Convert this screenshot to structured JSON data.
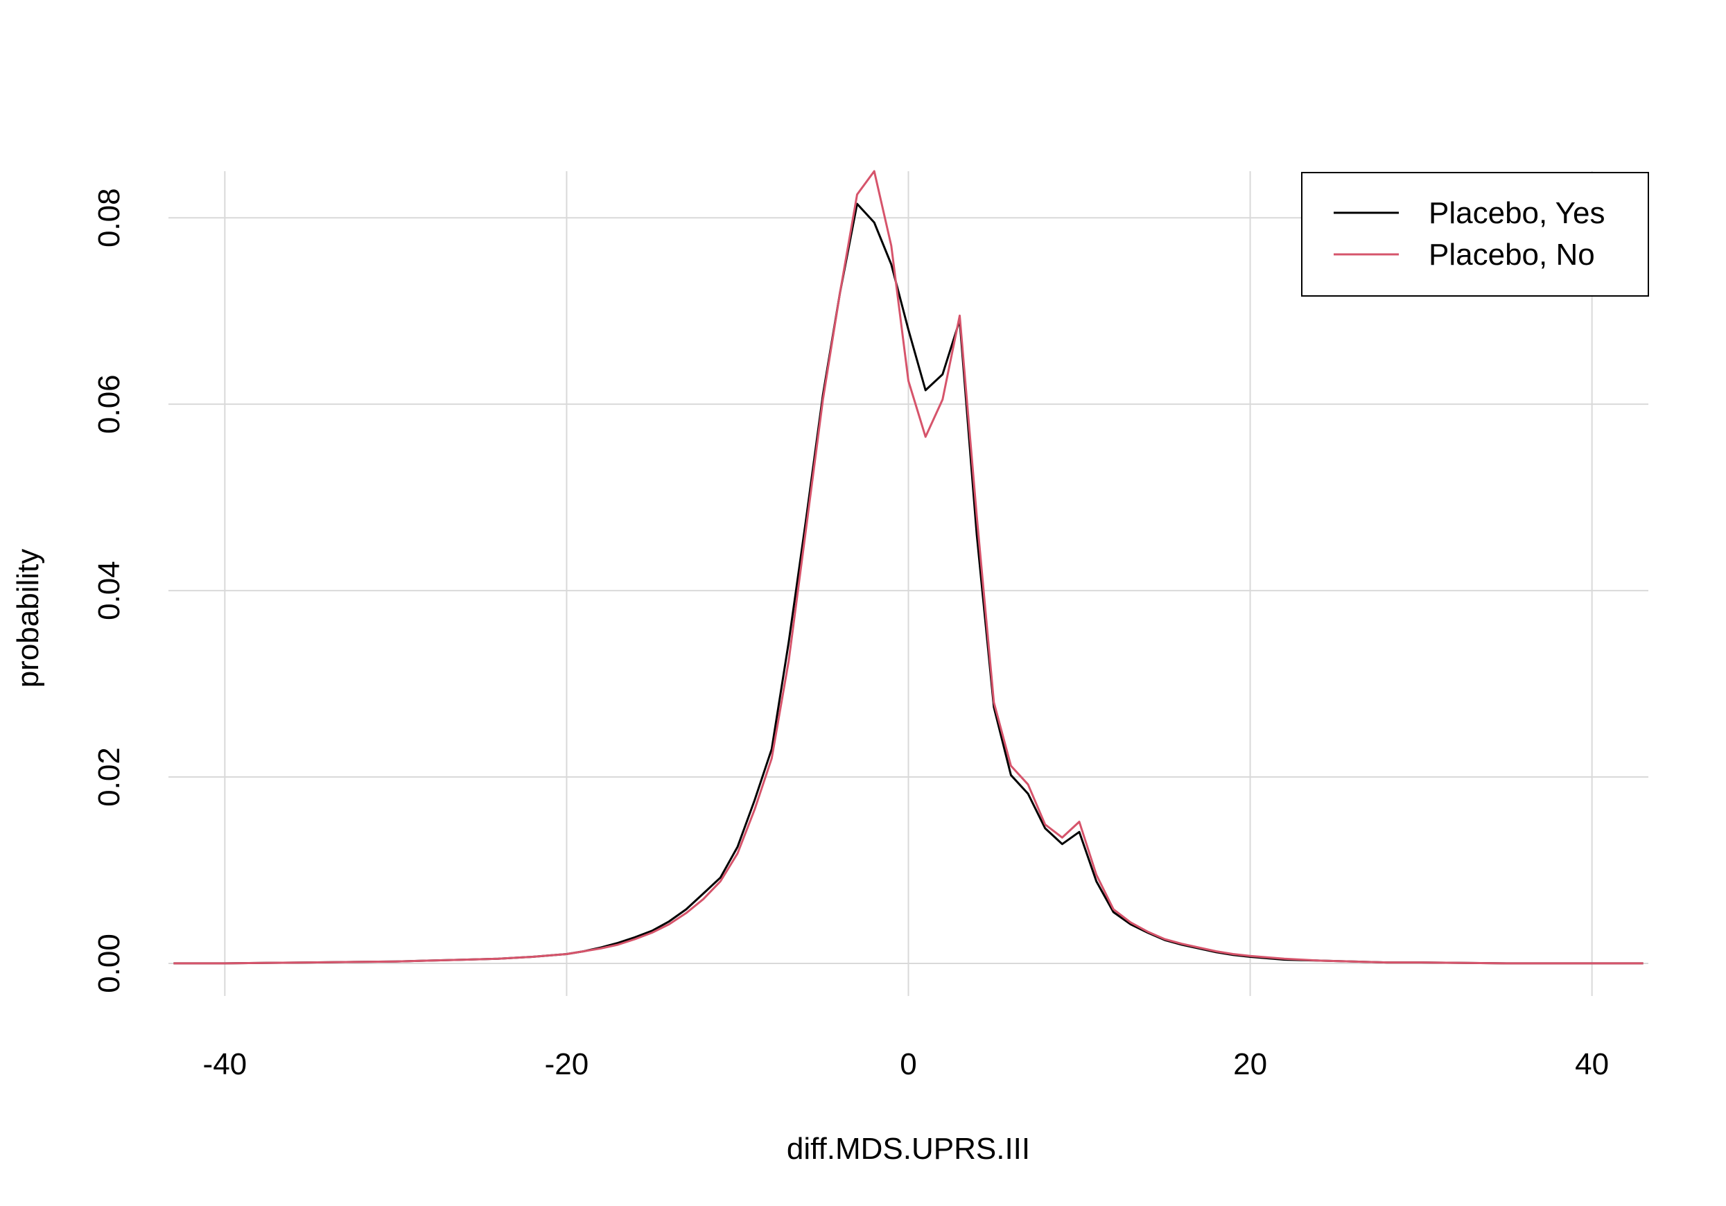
{
  "chart_data": {
    "type": "line",
    "title": "",
    "xlabel": "diff.MDS.UPRS.III",
    "ylabel": "probability",
    "xlim": [
      -43.3,
      43.3
    ],
    "ylim": [
      -0.0035,
      0.085
    ],
    "xticks": [
      -40,
      -20,
      0,
      20,
      40
    ],
    "xtick_labels": [
      "-40",
      "-20",
      "0",
      "20",
      "40"
    ],
    "yticks": [
      0,
      0.02,
      0.04,
      0.06,
      0.08
    ],
    "ytick_labels": [
      "0.00",
      "0.02",
      "0.04",
      "0.06",
      "0.08"
    ],
    "grid": true,
    "legend_position": "top-right",
    "series": [
      {
        "name": "Placebo, Yes",
        "color": "#000000",
        "x": [
          -43,
          -40,
          -35,
          -30,
          -28,
          -26,
          -24,
          -22,
          -20,
          -19,
          -18,
          -17,
          -16,
          -15,
          -14,
          -13,
          -12,
          -11,
          -10,
          -9,
          -8,
          -7,
          -6,
          -5,
          -4,
          -3,
          -2,
          -1,
          0,
          1,
          2,
          3,
          4,
          5,
          6,
          7,
          8,
          9,
          10,
          11,
          12,
          13,
          14,
          15,
          16,
          17,
          18,
          19,
          20,
          22,
          24,
          26,
          28,
          30,
          35,
          40,
          43
        ],
        "y": [
          0.0,
          0.0,
          0.0001,
          0.0002,
          0.0003,
          0.0004,
          0.0005,
          0.0007,
          0.001,
          0.0013,
          0.0017,
          0.0022,
          0.0028,
          0.0035,
          0.0045,
          0.0058,
          0.0075,
          0.0092,
          0.0125,
          0.0175,
          0.023,
          0.0345,
          0.0475,
          0.061,
          0.072,
          0.0815,
          0.0795,
          0.075,
          0.068,
          0.0615,
          0.0632,
          0.069,
          0.046,
          0.0275,
          0.0202,
          0.0182,
          0.0145,
          0.0128,
          0.0141,
          0.0088,
          0.0055,
          0.0042,
          0.0033,
          0.0025,
          0.002,
          0.0016,
          0.0012,
          0.0009,
          0.0007,
          0.0004,
          0.0003,
          0.0002,
          0.0001,
          0.0001,
          0.0,
          0.0,
          0.0
        ]
      },
      {
        "name": "Placebo, No",
        "color": "#d6546b",
        "x": [
          -43,
          -40,
          -35,
          -30,
          -28,
          -26,
          -24,
          -22,
          -20,
          -19,
          -18,
          -17,
          -16,
          -15,
          -14,
          -13,
          -12,
          -11,
          -10,
          -9,
          -8,
          -7,
          -6,
          -5,
          -4,
          -3,
          -2,
          -1,
          0,
          1,
          2,
          3,
          4,
          5,
          6,
          7,
          8,
          9,
          10,
          11,
          12,
          13,
          14,
          15,
          16,
          17,
          18,
          19,
          20,
          22,
          24,
          26,
          28,
          30,
          35,
          40,
          43
        ],
        "y": [
          0.0,
          0.0,
          0.0001,
          0.0002,
          0.0003,
          0.0004,
          0.0005,
          0.0007,
          0.001,
          0.0013,
          0.0016,
          0.002,
          0.0026,
          0.0033,
          0.0042,
          0.0054,
          0.0069,
          0.0088,
          0.0118,
          0.0165,
          0.022,
          0.0325,
          0.0465,
          0.0605,
          0.072,
          0.0825,
          0.085,
          0.077,
          0.0625,
          0.0565,
          0.0605,
          0.0695,
          0.048,
          0.028,
          0.0212,
          0.0192,
          0.0149,
          0.0135,
          0.0152,
          0.0095,
          0.0058,
          0.0044,
          0.0034,
          0.0026,
          0.0021,
          0.0017,
          0.0013,
          0.001,
          0.0008,
          0.0005,
          0.0003,
          0.0002,
          0.0001,
          0.0001,
          0.0,
          0.0,
          0.0
        ]
      }
    ]
  }
}
